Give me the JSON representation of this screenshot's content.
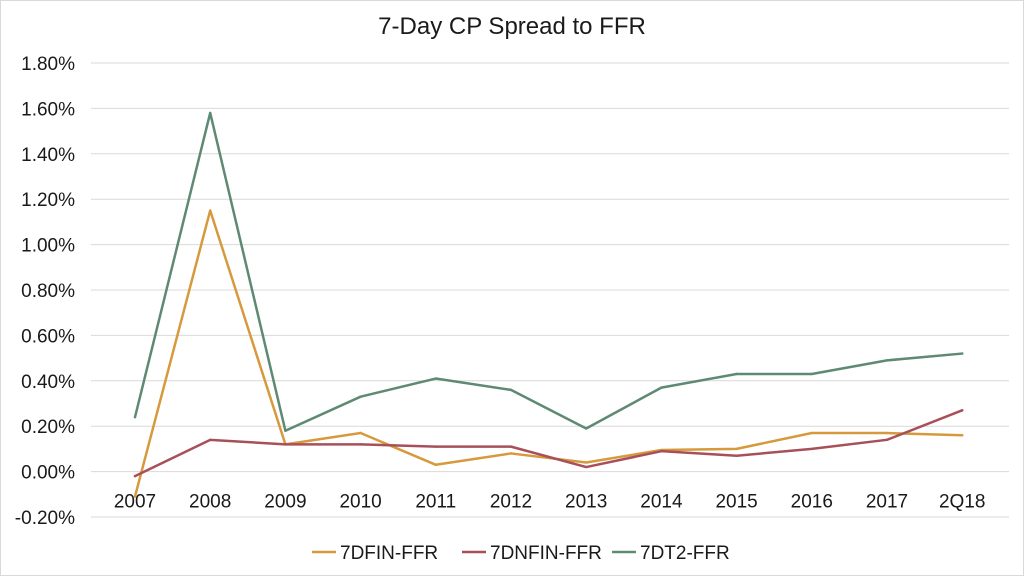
{
  "chart_data": {
    "type": "line",
    "title": "7-Day CP Spread to FFR",
    "xlabel": "",
    "ylabel": "",
    "categories": [
      "2007",
      "2008",
      "2009",
      "2010",
      "2011",
      "2012",
      "2013",
      "2014",
      "2015",
      "2016",
      "2017",
      "2Q18"
    ],
    "ylim": [
      -0.2,
      1.8
    ],
    "yticks": [
      -0.2,
      0,
      0.2,
      0.4,
      0.6,
      0.8,
      1.0,
      1.2,
      1.4,
      1.6,
      1.8
    ],
    "ytick_labels": [
      "-0.20%",
      "0.00%",
      "0.20%",
      "0.40%",
      "0.60%",
      "0.80%",
      "1.00%",
      "1.20%",
      "1.40%",
      "1.60%",
      "1.80%"
    ],
    "grid": true,
    "legend_position": "bottom",
    "series": [
      {
        "name": "7DFIN-FFR",
        "color": "#D69A3C",
        "values": [
          -0.11,
          1.15,
          0.12,
          0.17,
          0.03,
          0.08,
          0.04,
          0.095,
          0.1,
          0.17,
          0.17,
          0.16
        ]
      },
      {
        "name": "7DNFIN-FFR",
        "color": "#A8505A",
        "values": [
          -0.02,
          0.14,
          0.12,
          0.12,
          0.11,
          0.11,
          0.02,
          0.09,
          0.07,
          0.1,
          0.14,
          0.27
        ]
      },
      {
        "name": "7DT2-FFR",
        "color": "#5E8A73",
        "values": [
          0.24,
          1.58,
          0.18,
          0.33,
          0.41,
          0.36,
          0.19,
          0.37,
          0.43,
          0.43,
          0.49,
          0.52
        ]
      }
    ]
  }
}
